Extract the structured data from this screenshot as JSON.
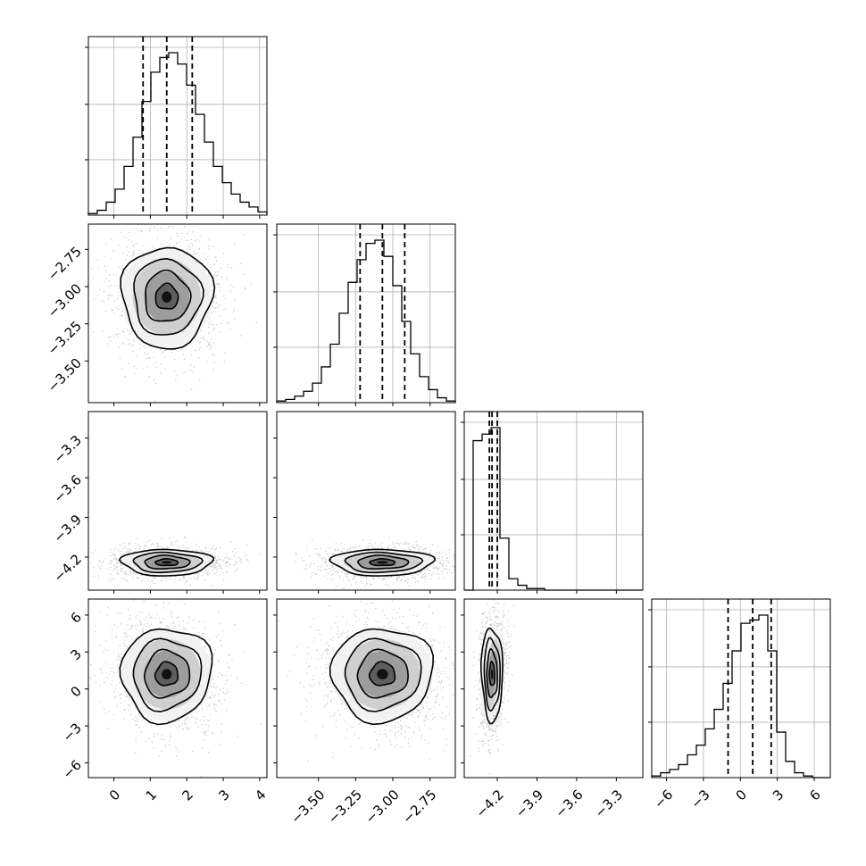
{
  "chart_data": {
    "type": "corner",
    "parameters": [
      {
        "range": [
          -0.7,
          4.2
        ],
        "ticks": [
          0,
          1,
          2,
          3,
          4
        ],
        "tick_labels": [
          "0",
          "1",
          "2",
          "3",
          "4"
        ],
        "quantiles": [
          0.8,
          1.45,
          2.15
        ],
        "hist": [
          0.01,
          0.03,
          0.08,
          0.16,
          0.3,
          0.48,
          0.7,
          0.88,
          0.97,
          1.0,
          0.93,
          0.8,
          0.62,
          0.45,
          0.3,
          0.2,
          0.13,
          0.08,
          0.05,
          0.02
        ]
      },
      {
        "range": [
          -3.78,
          -2.58
        ],
        "ticks": [
          -3.5,
          -3.25,
          -3.0,
          -2.75
        ],
        "tick_labels": [
          "−3.50",
          "−3.25",
          "−3.00",
          "−2.75"
        ],
        "quantiles": [
          -3.22,
          -3.07,
          -2.92
        ],
        "hist": [
          0.01,
          0.02,
          0.04,
          0.07,
          0.12,
          0.22,
          0.36,
          0.55,
          0.74,
          0.88,
          0.98,
          1.0,
          0.9,
          0.72,
          0.5,
          0.3,
          0.16,
          0.08,
          0.03,
          0.01
        ]
      },
      {
        "range": [
          -4.45,
          -3.1
        ],
        "ticks": [
          -4.2,
          -3.9,
          -3.6,
          -3.3
        ],
        "tick_labels": [
          "−4.2",
          "−3.9",
          "−3.6",
          "−3.3"
        ],
        "quantiles": [
          -4.26,
          -4.24,
          -4.2
        ],
        "hist": [
          0.0,
          0.92,
          0.96,
          1.0,
          0.32,
          0.07,
          0.03,
          0.01,
          0.01,
          0.0,
          0.0,
          0.0,
          0.0,
          0.0,
          0.0,
          0.0,
          0.0,
          0.0,
          0.0,
          0.0
        ]
      },
      {
        "range": [
          -7.2,
          7.3
        ],
        "ticks": [
          -6,
          -3,
          0,
          3,
          6
        ],
        "tick_labels": [
          "−6",
          "−3",
          "0",
          "3",
          "6"
        ],
        "quantiles": [
          -1.0,
          1.0,
          2.5
        ],
        "hist": [
          0.01,
          0.03,
          0.05,
          0.08,
          0.14,
          0.2,
          0.3,
          0.42,
          0.58,
          0.78,
          0.95,
          0.97,
          1.0,
          0.78,
          0.28,
          0.1,
          0.03,
          0.01,
          0.0,
          0.0
        ]
      }
    ],
    "joint": [
      {
        "row": 1,
        "col": 0,
        "center": [
          1.45,
          -3.07
        ],
        "spread": [
          0.62,
          0.17
        ],
        "tilt": 0.0
      },
      {
        "row": 2,
        "col": 0,
        "center": [
          1.45,
          -4.24
        ],
        "spread": [
          0.62,
          0.05
        ],
        "tilt": 0.0
      },
      {
        "row": 2,
        "col": 1,
        "center": [
          -3.07,
          -4.24
        ],
        "spread": [
          0.17,
          0.05
        ],
        "tilt": 0.0
      },
      {
        "row": 3,
        "col": 0,
        "center": [
          1.45,
          1.2
        ],
        "spread": [
          0.62,
          1.9
        ],
        "tilt": 0.15
      },
      {
        "row": 3,
        "col": 1,
        "center": [
          -3.07,
          1.2
        ],
        "spread": [
          0.17,
          1.9
        ],
        "tilt": 0.1
      },
      {
        "row": 3,
        "col": 2,
        "center": [
          -4.24,
          1.2
        ],
        "spread": [
          0.04,
          1.9
        ],
        "tilt": -0.2
      }
    ],
    "contour_levels_sigma": [
      0.5,
      1.0,
      1.5,
      2.0
    ],
    "grid": true
  }
}
